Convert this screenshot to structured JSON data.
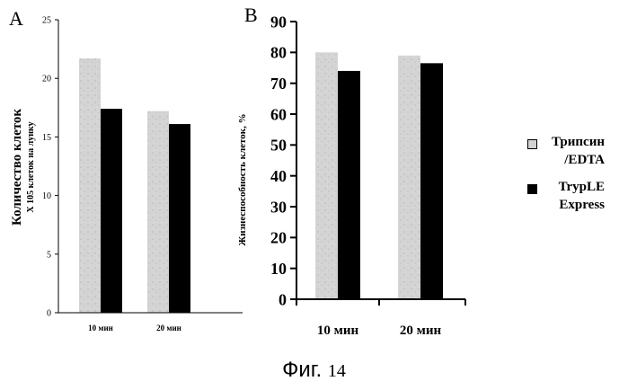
{
  "chart_data": [
    {
      "panel_label": "A",
      "type": "bar",
      "categories": [
        "10 мин",
        "20 мин"
      ],
      "series": [
        {
          "name": "Трипсин /EDTA",
          "values": [
            21.7,
            17.2
          ]
        },
        {
          "name": "TrypLE Express",
          "values": [
            17.4,
            16.1
          ]
        }
      ],
      "ylabel_line1": "Количество клеток",
      "ylabel_line2": "X 105 клеток на лунку",
      "ylim": [
        0,
        25
      ],
      "yticks": [
        "0",
        "5",
        "10",
        "15",
        "20",
        "25"
      ],
      "grid": false
    },
    {
      "panel_label": "B",
      "type": "bar",
      "categories": [
        "10 мин",
        "20 мин"
      ],
      "series": [
        {
          "name": "Трипсин /EDTA",
          "values": [
            80,
            79
          ]
        },
        {
          "name": "TrypLE Express",
          "values": [
            74,
            76.5
          ]
        }
      ],
      "ylabel": "Жизнеспособность клеток, %",
      "ylim": [
        0,
        90
      ],
      "yticks": [
        "0",
        "10",
        "20",
        "30",
        "40",
        "50",
        "60",
        "70",
        "80",
        "90"
      ],
      "grid": false
    }
  ],
  "legend": {
    "position": "right",
    "items": [
      {
        "label_line1": "Трипсин",
        "label_line2": "/EDTA",
        "color": "#d2d2d2"
      },
      {
        "label_line1": "TrypLE",
        "label_line2": "Express",
        "color": "#000000"
      }
    ]
  },
  "caption": {
    "text": "Фиг.",
    "number": "14"
  },
  "colors": {
    "series1": "#d2d2d2",
    "series2": "#000000",
    "axis": "#000000"
  }
}
